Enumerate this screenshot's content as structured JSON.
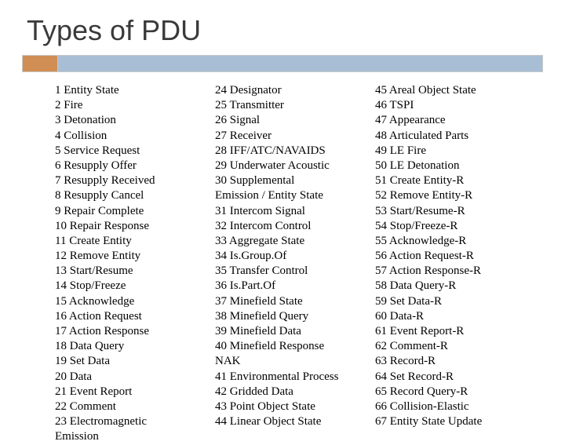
{
  "title": "Types of PDU",
  "styling": {
    "slide_width": 720,
    "slide_height": 540,
    "background_color": "#ffffff",
    "title_color": "#3a3a3a",
    "title_fontsize": 36,
    "accent_orange": "#d18e54",
    "accent_blue": "#a8bed4",
    "accent_border": "#c9c9c9",
    "list_font": "Times New Roman",
    "list_fontsize": 15,
    "list_color": "#000000",
    "line_height": 1.28
  },
  "columns": [
    {
      "items": [
        "1 Entity State",
        "2 Fire",
        "3 Detonation",
        "4 Collision",
        "5 Service Request",
        "6 Resupply Offer",
        "7 Resupply Received",
        "8 Resupply Cancel",
        "9 Repair Complete",
        "10 Repair Response",
        "11 Create Entity",
        "12 Remove Entity",
        "13 Start/Resume",
        "14 Stop/Freeze",
        "15 Acknowledge",
        "16 Action Request",
        "17 Action Response",
        "18 Data Query",
        "19 Set Data",
        "20 Data",
        "21 Event Report",
        "22 Comment",
        "23 Electromagnetic",
        "Emission"
      ]
    },
    {
      "items": [
        "24 Designator",
        "25 Transmitter",
        "26 Signal",
        "27 Receiver",
        "28 IFF/ATC/NAVAIDS",
        "29 Underwater Acoustic",
        "30 Supplemental",
        "Emission / Entity State",
        "31 Intercom Signal",
        "32 Intercom Control",
        "33 Aggregate State",
        "34 Is.Group.Of",
        "35 Transfer Control",
        "36 Is.Part.Of",
        "37 Minefield State",
        "38 Minefield Query",
        "39 Minefield Data",
        "40 Minefield Response",
        "NAK",
        "41 Environmental Process",
        "42 Gridded Data",
        "43 Point Object State",
        "44 Linear Object State"
      ]
    },
    {
      "items": [
        "45 Areal Object State",
        "46 TSPI",
        "47 Appearance",
        "48 Articulated Parts",
        "49 LE Fire",
        "50 LE Detonation",
        "51 Create Entity-R",
        "52 Remove Entity-R",
        "53 Start/Resume-R",
        "54 Stop/Freeze-R",
        "55 Acknowledge-R",
        "56 Action Request-R",
        "57 Action Response-R",
        "58 Data Query-R",
        "59 Set Data-R",
        "60 Data-R",
        "61 Event Report-R",
        "62 Comment-R",
        "63 Record-R",
        "64 Set Record-R",
        "65 Record Query-R",
        "66 Collision-Elastic",
        "67 Entity State Update"
      ]
    }
  ]
}
